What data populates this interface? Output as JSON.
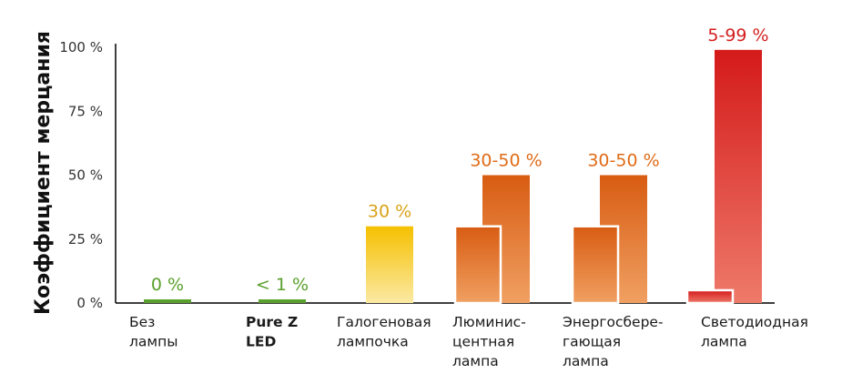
{
  "chart_data": {
    "type": "bar",
    "ylabel": "Коэффициент мерцания",
    "ylim": [
      0,
      100
    ],
    "y_ticks": [
      "0 %",
      "25 %",
      "50 %",
      "75 %",
      "100 %"
    ],
    "grid": false,
    "categories": [
      {
        "lines": [
          "Без",
          "лампы"
        ],
        "value_label": "0 %",
        "range": [
          0,
          0
        ],
        "color": "#5aa02c",
        "style": "flat",
        "highlight": false
      },
      {
        "lines": [
          "Pure Z",
          "LED"
        ],
        "value_label": "< 1 %",
        "range": [
          1,
          1
        ],
        "color": "#5aa02c",
        "style": "flat",
        "highlight": true,
        "highlight_color": "#3e8e1c"
      },
      {
        "lines": [
          "Галогеновая",
          "лампочка"
        ],
        "value_label": "30 %",
        "range": [
          30,
          30
        ],
        "color": "#d9a21a",
        "colors": [
          "#f5c000",
          "#fbe9a4"
        ],
        "style": "single",
        "highlight": false
      },
      {
        "lines": [
          "Люминис-",
          "центная",
          "лампа"
        ],
        "value_label": "30-50 %",
        "range": [
          30,
          50
        ],
        "color": "#e06b17",
        "colors": [
          "#d85c12",
          "#f0a062"
        ],
        "style": "pair",
        "highlight": false
      },
      {
        "lines": [
          "Энергосбере-",
          "гающая",
          "лампа"
        ],
        "value_label": "30-50 %",
        "range": [
          30,
          50
        ],
        "color": "#e06b17",
        "colors": [
          "#d85c12",
          "#f0a062"
        ],
        "style": "pair",
        "highlight": false
      },
      {
        "lines": [
          "Светодиодная",
          "лампа"
        ],
        "value_label": "5-99 %",
        "range": [
          5,
          99
        ],
        "color": "#d41f1f",
        "colors": [
          "#d41a1a",
          "#ee7a6a"
        ],
        "style": "pair",
        "highlight": false
      }
    ]
  }
}
